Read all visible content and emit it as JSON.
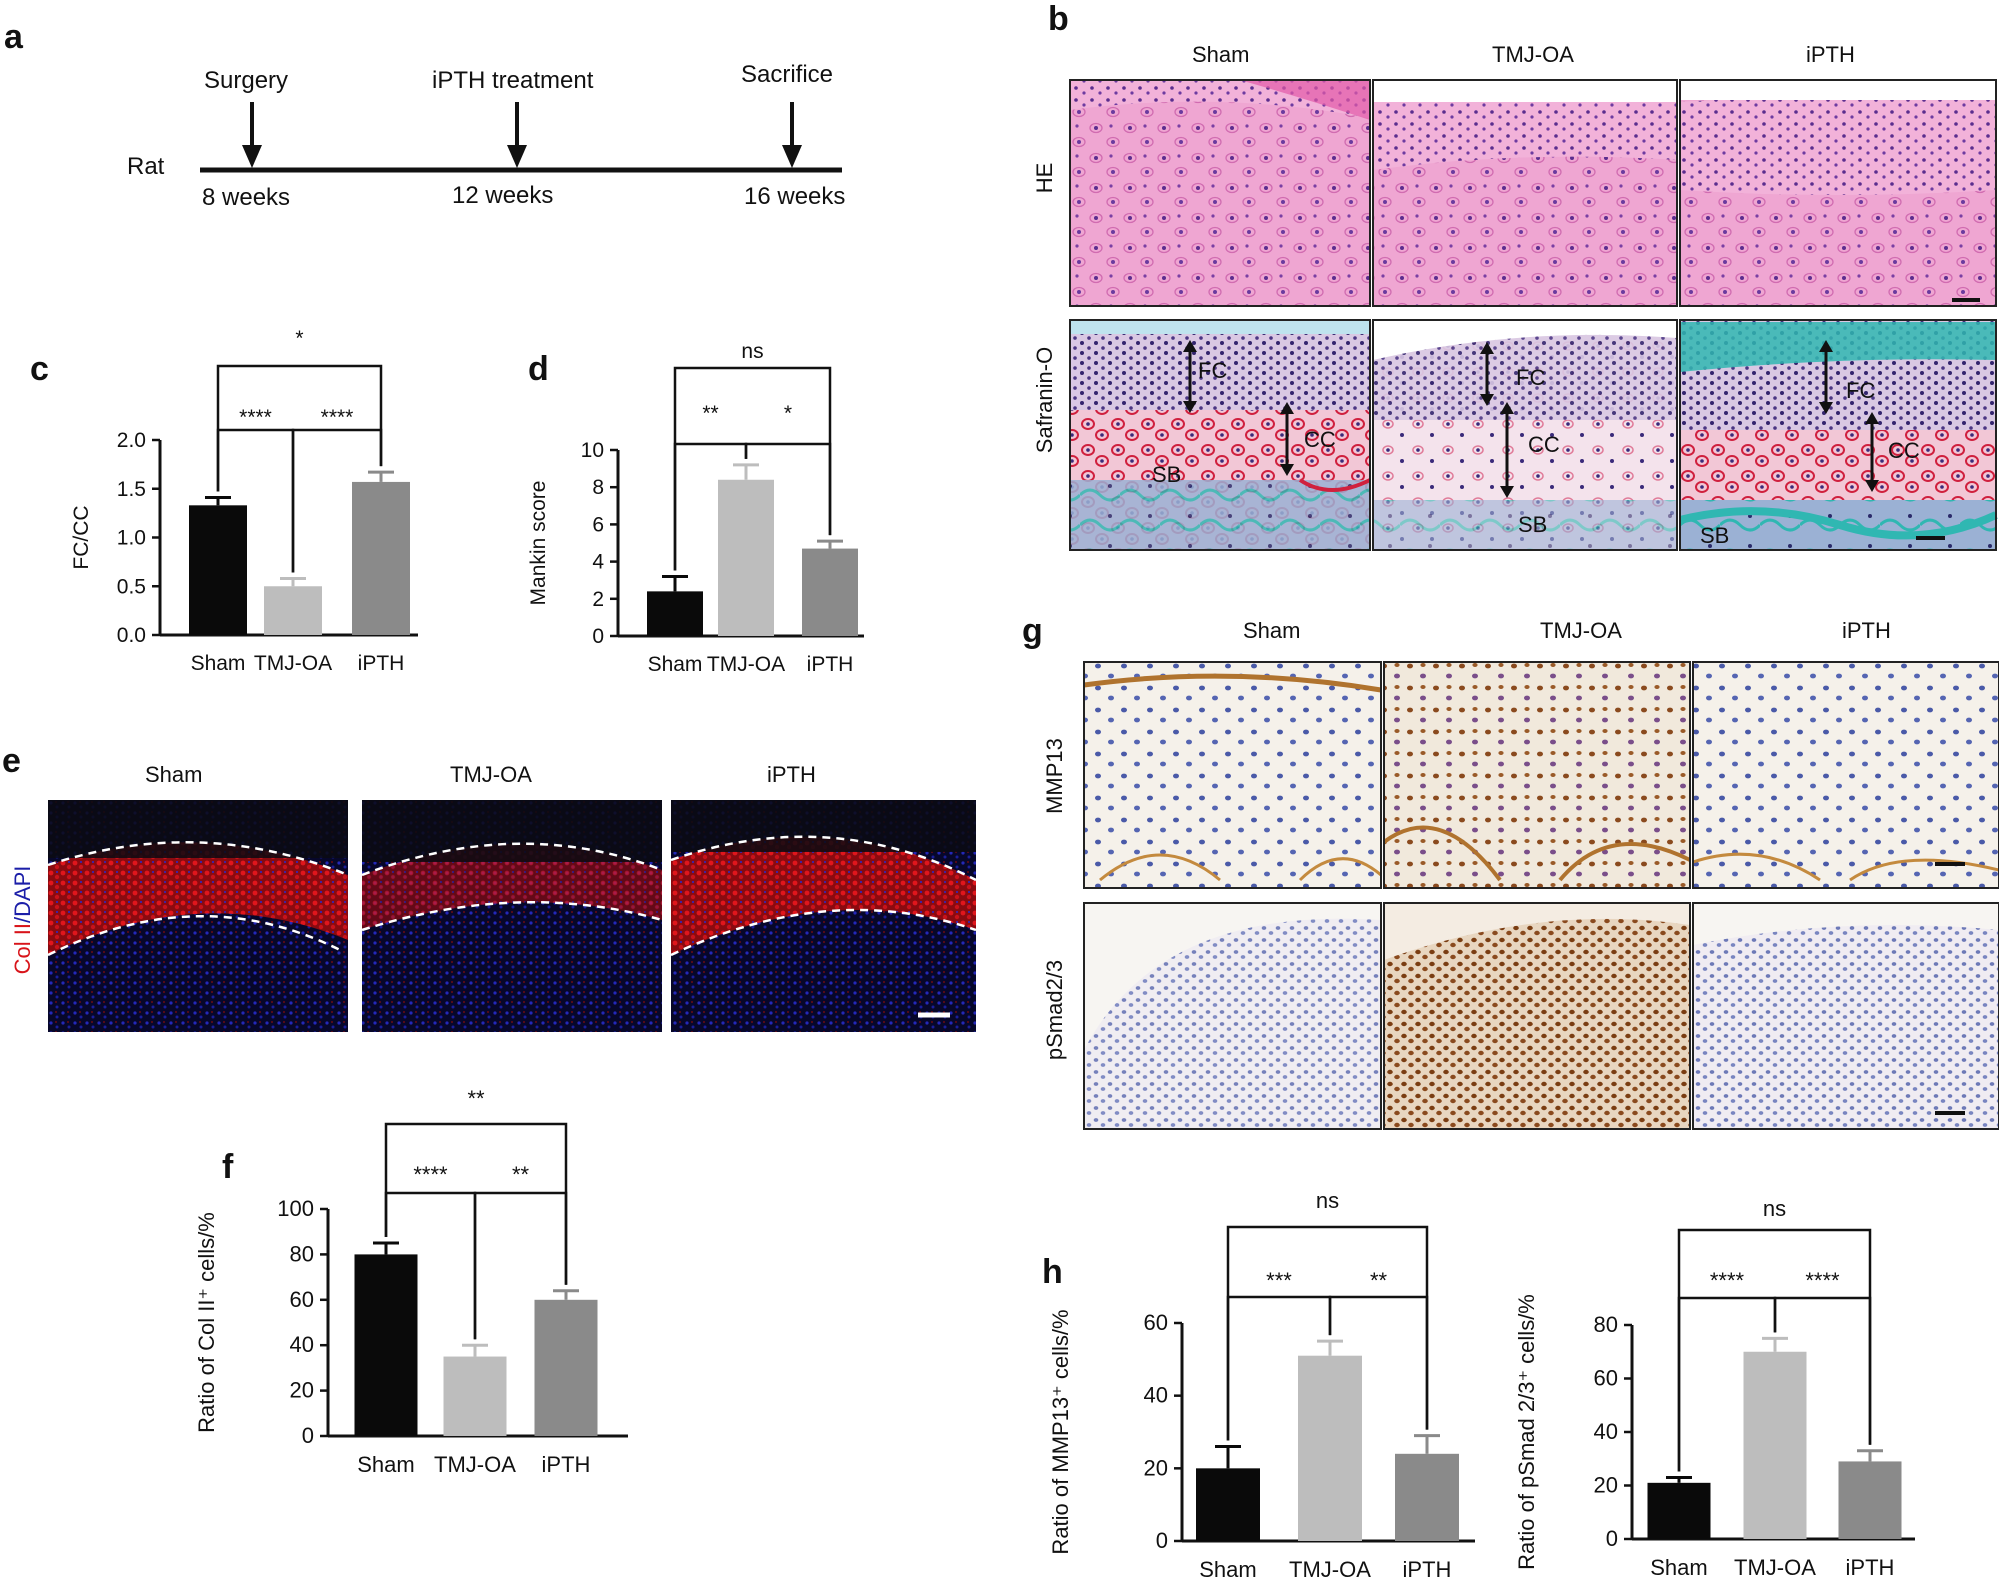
{
  "panel_labels": {
    "a": "a",
    "b": "b",
    "c": "c",
    "d": "d",
    "e": "e",
    "f": "f",
    "g": "g",
    "h": "h"
  },
  "timeline": {
    "subject": "Rat",
    "events": [
      {
        "label": "Surgery",
        "time": "8 weeks"
      },
      {
        "label": "iPTH treatment",
        "time": "12 weeks"
      },
      {
        "label": "Sacrifice",
        "time": "16 weeks"
      }
    ]
  },
  "groups": [
    "Sham",
    "TMJ-OA",
    "iPTH"
  ],
  "panel_b": {
    "rows": [
      "HE",
      "Safranin-O"
    ],
    "annotations": [
      [
        "FC",
        "CC",
        "SB"
      ],
      [
        "FC",
        "CC",
        "SB"
      ],
      [
        "FC",
        "CC",
        "SB"
      ]
    ]
  },
  "panel_e": {
    "ylabel_red": "Col II",
    "ylabel_blue": "/DAPI"
  },
  "panel_g": {
    "rows": [
      "MMP13",
      "pSmad2/3"
    ]
  },
  "colors": {
    "black": "#0a0a0a",
    "light_gray": "#bdbdbd",
    "mid_gray": "#8a8a8a",
    "he_pink": "#e88cc4",
    "ifc_red": "#d8141a",
    "dapi_blue": "#1b1ea8",
    "ihc_brown": "#8a4a1e",
    "ihc_blue": "#3d4f9c",
    "safranin_red": "#d0203e",
    "fast_green": "#30b7b2"
  },
  "chart_data": [
    {
      "id": "c",
      "type": "bar",
      "categories": [
        "Sham",
        "TMJ-OA",
        "iPTH"
      ],
      "values": [
        1.33,
        0.5,
        1.57
      ],
      "errors": [
        0.08,
        0.08,
        0.1
      ],
      "xlabel": "",
      "ylabel": "FC/CC",
      "ylim": [
        0,
        2.0
      ],
      "yticks": [
        "0.0",
        "0.5",
        "1.0",
        "1.5",
        "2.0"
      ],
      "significance": [
        {
          "from": 0,
          "to": 1,
          "label": "****"
        },
        {
          "from": 1,
          "to": 2,
          "label": "****"
        },
        {
          "from": 0,
          "to": 2,
          "label": "*"
        }
      ]
    },
    {
      "id": "d",
      "type": "bar",
      "categories": [
        "Sham",
        "TMJ-OA",
        "iPTH"
      ],
      "values": [
        2.4,
        8.4,
        4.7
      ],
      "errors": [
        0.8,
        0.8,
        0.4
      ],
      "xlabel": "",
      "ylabel": "Mankin score",
      "ylim": [
        0,
        10
      ],
      "yticks": [
        "0",
        "2",
        "4",
        "6",
        "8",
        "10"
      ],
      "significance": [
        {
          "from": 0,
          "to": 1,
          "label": "**"
        },
        {
          "from": 1,
          "to": 2,
          "label": "*"
        },
        {
          "from": 0,
          "to": 2,
          "label": "ns"
        }
      ]
    },
    {
      "id": "f",
      "type": "bar",
      "categories": [
        "Sham",
        "TMJ-OA",
        "iPTH"
      ],
      "values": [
        80,
        35,
        60
      ],
      "errors": [
        5,
        5,
        4
      ],
      "xlabel": "",
      "ylabel": "Ratio of Col II⁺ cells/%",
      "ylim": [
        0,
        100
      ],
      "yticks": [
        "0",
        "20",
        "40",
        "60",
        "80",
        "100"
      ],
      "significance": [
        {
          "from": 0,
          "to": 1,
          "label": "****"
        },
        {
          "from": 1,
          "to": 2,
          "label": "**"
        },
        {
          "from": 0,
          "to": 2,
          "label": "**"
        }
      ]
    },
    {
      "id": "h1",
      "type": "bar",
      "categories": [
        "Sham",
        "TMJ-OA",
        "iPTH"
      ],
      "values": [
        20,
        51,
        24
      ],
      "errors": [
        6,
        4,
        5
      ],
      "xlabel": "",
      "ylabel": "Ratio of MMP13⁺ cells/%",
      "ylim": [
        0,
        60
      ],
      "yticks": [
        "0",
        "20",
        "40",
        "60"
      ],
      "significance": [
        {
          "from": 0,
          "to": 1,
          "label": "***"
        },
        {
          "from": 1,
          "to": 2,
          "label": "**"
        },
        {
          "from": 0,
          "to": 2,
          "label": "ns"
        }
      ]
    },
    {
      "id": "h2",
      "type": "bar",
      "categories": [
        "Sham",
        "TMJ-OA",
        "iPTH"
      ],
      "values": [
        21,
        70,
        29
      ],
      "errors": [
        2,
        5,
        4
      ],
      "xlabel": "",
      "ylabel": "Ratio of pSmad 2/3⁺ cells/%",
      "ylim": [
        0,
        80
      ],
      "yticks": [
        "0",
        "20",
        "40",
        "60",
        "80"
      ],
      "significance": [
        {
          "from": 0,
          "to": 1,
          "label": "****"
        },
        {
          "from": 1,
          "to": 2,
          "label": "****"
        },
        {
          "from": 0,
          "to": 2,
          "label": "ns"
        }
      ]
    }
  ]
}
